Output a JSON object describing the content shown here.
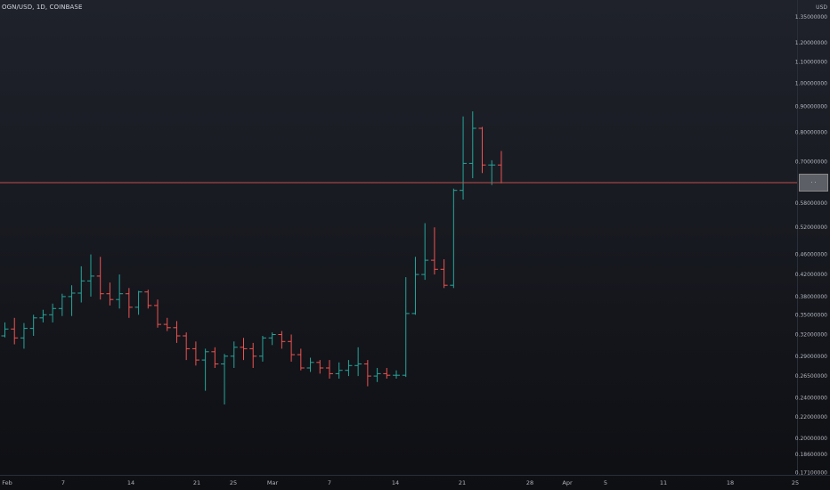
{
  "symbol": "OGN/USD, 1D, COINBASE",
  "currency": "USD",
  "last_price_label": "· ·",
  "colors": {
    "up": "#26a69a",
    "down": "#ef5350",
    "price_line": "#c0504d",
    "axis_text": "#b2b5be"
  },
  "chart_data": {
    "type": "ohlc",
    "title": "OGN/USD, 1D, COINBASE",
    "y_unit": "USD",
    "y_scale": "log",
    "ylim": [
      0.168,
      1.4
    ],
    "grid": false,
    "x_tick_labels": [
      "Feb",
      "7",
      "14",
      "21",
      "25",
      "Mar",
      "7",
      "14",
      "21",
      "28",
      "Apr",
      "5",
      "11",
      "18",
      "25"
    ],
    "y_tick_labels": [
      "1.35000000",
      "1.20000000",
      "1.10000000",
      "1.00000000",
      "0.90000000",
      "0.80000000",
      "0.70000000",
      "0.58000000",
      "0.52000000",
      "0.46000000",
      "0.42000000",
      "0.38000000",
      "0.35000000",
      "0.32000000",
      "0.29000000",
      "0.26500000",
      "0.24000000",
      "0.22000000",
      "0.20000000",
      "0.18600000",
      "0.17100000"
    ],
    "last_price": 0.637,
    "bars": [
      {
        "o": 0.318,
        "h": 0.338,
        "l": 0.316,
        "c": 0.328
      },
      {
        "o": 0.328,
        "h": 0.345,
        "l": 0.306,
        "c": 0.315
      },
      {
        "o": 0.315,
        "h": 0.337,
        "l": 0.3,
        "c": 0.329
      },
      {
        "o": 0.329,
        "h": 0.35,
        "l": 0.318,
        "c": 0.345
      },
      {
        "o": 0.345,
        "h": 0.358,
        "l": 0.338,
        "c": 0.35
      },
      {
        "o": 0.35,
        "h": 0.368,
        "l": 0.338,
        "c": 0.36
      },
      {
        "o": 0.36,
        "h": 0.385,
        "l": 0.348,
        "c": 0.38
      },
      {
        "o": 0.38,
        "h": 0.4,
        "l": 0.348,
        "c": 0.386
      },
      {
        "o": 0.386,
        "h": 0.436,
        "l": 0.37,
        "c": 0.408
      },
      {
        "o": 0.408,
        "h": 0.46,
        "l": 0.38,
        "c": 0.417
      },
      {
        "o": 0.417,
        "h": 0.455,
        "l": 0.375,
        "c": 0.385
      },
      {
        "o": 0.385,
        "h": 0.405,
        "l": 0.365,
        "c": 0.375
      },
      {
        "o": 0.375,
        "h": 0.42,
        "l": 0.36,
        "c": 0.385
      },
      {
        "o": 0.385,
        "h": 0.395,
        "l": 0.345,
        "c": 0.362
      },
      {
        "o": 0.362,
        "h": 0.39,
        "l": 0.35,
        "c": 0.388
      },
      {
        "o": 0.388,
        "h": 0.392,
        "l": 0.36,
        "c": 0.365
      },
      {
        "o": 0.365,
        "h": 0.375,
        "l": 0.33,
        "c": 0.335
      },
      {
        "o": 0.335,
        "h": 0.345,
        "l": 0.325,
        "c": 0.33
      },
      {
        "o": 0.33,
        "h": 0.34,
        "l": 0.308,
        "c": 0.318
      },
      {
        "o": 0.318,
        "h": 0.323,
        "l": 0.285,
        "c": 0.3
      },
      {
        "o": 0.3,
        "h": 0.31,
        "l": 0.278,
        "c": 0.285
      },
      {
        "o": 0.285,
        "h": 0.3,
        "l": 0.248,
        "c": 0.296
      },
      {
        "o": 0.296,
        "h": 0.302,
        "l": 0.275,
        "c": 0.28
      },
      {
        "o": 0.28,
        "h": 0.293,
        "l": 0.233,
        "c": 0.29
      },
      {
        "o": 0.29,
        "h": 0.31,
        "l": 0.275,
        "c": 0.302
      },
      {
        "o": 0.302,
        "h": 0.315,
        "l": 0.285,
        "c": 0.3
      },
      {
        "o": 0.3,
        "h": 0.308,
        "l": 0.275,
        "c": 0.29
      },
      {
        "o": 0.29,
        "h": 0.318,
        "l": 0.283,
        "c": 0.315
      },
      {
        "o": 0.315,
        "h": 0.323,
        "l": 0.305,
        "c": 0.32
      },
      {
        "o": 0.32,
        "h": 0.325,
        "l": 0.3,
        "c": 0.31
      },
      {
        "o": 0.31,
        "h": 0.32,
        "l": 0.283,
        "c": 0.292
      },
      {
        "o": 0.292,
        "h": 0.3,
        "l": 0.272,
        "c": 0.275
      },
      {
        "o": 0.275,
        "h": 0.288,
        "l": 0.27,
        "c": 0.282
      },
      {
        "o": 0.282,
        "h": 0.285,
        "l": 0.268,
        "c": 0.275
      },
      {
        "o": 0.275,
        "h": 0.285,
        "l": 0.262,
        "c": 0.268
      },
      {
        "o": 0.268,
        "h": 0.282,
        "l": 0.262,
        "c": 0.272
      },
      {
        "o": 0.272,
        "h": 0.285,
        "l": 0.265,
        "c": 0.278
      },
      {
        "o": 0.278,
        "h": 0.302,
        "l": 0.265,
        "c": 0.28
      },
      {
        "o": 0.28,
        "h": 0.285,
        "l": 0.253,
        "c": 0.265
      },
      {
        "o": 0.265,
        "h": 0.275,
        "l": 0.258,
        "c": 0.268
      },
      {
        "o": 0.268,
        "h": 0.275,
        "l": 0.262,
        "c": 0.266
      },
      {
        "o": 0.266,
        "h": 0.272,
        "l": 0.262,
        "c": 0.266
      },
      {
        "o": 0.266,
        "h": 0.415,
        "l": 0.264,
        "c": 0.352
      },
      {
        "o": 0.352,
        "h": 0.455,
        "l": 0.35,
        "c": 0.42
      },
      {
        "o": 0.42,
        "h": 0.53,
        "l": 0.41,
        "c": 0.448
      },
      {
        "o": 0.448,
        "h": 0.52,
        "l": 0.42,
        "c": 0.43
      },
      {
        "o": 0.43,
        "h": 0.45,
        "l": 0.395,
        "c": 0.4
      },
      {
        "o": 0.4,
        "h": 0.62,
        "l": 0.395,
        "c": 0.615
      },
      {
        "o": 0.615,
        "h": 0.86,
        "l": 0.59,
        "c": 0.695
      },
      {
        "o": 0.695,
        "h": 0.88,
        "l": 0.65,
        "c": 0.815
      },
      {
        "o": 0.815,
        "h": 0.82,
        "l": 0.665,
        "c": 0.69
      },
      {
        "o": 0.69,
        "h": 0.705,
        "l": 0.63,
        "c": 0.69
      },
      {
        "o": 0.69,
        "h": 0.735,
        "l": 0.635,
        "c": 0.637
      }
    ]
  }
}
